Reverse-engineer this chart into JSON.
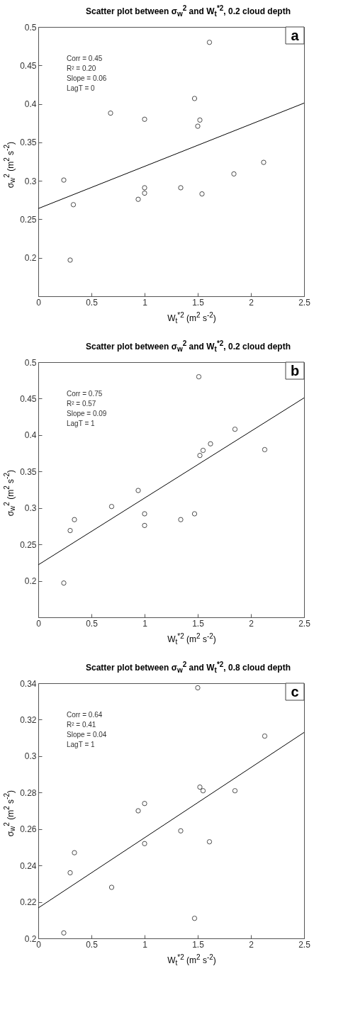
{
  "chart_data": [
    {
      "type": "scatter",
      "title": "Scatter plot between σ$_{w}$$^{2}$ and W$_{t}$$^{*2}$, 0.2 cloud depth",
      "xlabel": "W$_{t}$$^{*2}$ (m$^{2}$ s$^{-2}$)",
      "ylabel": "σ$_{w}$$^{2}$ (m$^{2}$ s$^{-2}$)",
      "xlim": [
        0,
        2.5
      ],
      "ylim": [
        0.15,
        0.5
      ],
      "xticks": [
        0,
        0.5,
        1,
        1.5,
        2,
        2.5
      ],
      "yticks": [
        0.2,
        0.25,
        0.3,
        0.35,
        0.4,
        0.45,
        0.5
      ],
      "series": [
        {
          "marker": "circle",
          "color": "#000000",
          "x": [
            0.24,
            0.3,
            0.33,
            0.68,
            0.94,
            1.0,
            1.0,
            1.0,
            1.34,
            1.47,
            1.5,
            1.52,
            1.54,
            1.61,
            1.84,
            2.12
          ],
          "values": [
            0.301,
            0.197,
            0.269,
            0.388,
            0.276,
            0.291,
            0.284,
            0.38,
            0.291,
            0.407,
            0.371,
            0.379,
            0.283,
            0.48,
            0.309,
            0.324
          ]
        },
        {
          "type": "line",
          "color": "#000000",
          "x": [
            0,
            2.5
          ],
          "values": [
            0.264,
            0.401
          ]
        }
      ],
      "annotations": [
        "a",
        "Corr = 0.45",
        "R² = 0.20",
        "Slope = 0.06",
        "LagT = 0"
      ]
    },
    {
      "type": "scatter",
      "title": "Scatter plot between σ$_{w}$$^{2}$ and W$_{t}$$^{*2}$, 0.2 cloud depth",
      "xlabel": "W$_{t}$$^{*2}$ (m$^{2}$ s$^{-2}$)",
      "ylabel": "σ$_{w}$$^{2}$ (m$^{2}$ s$^{-2}$)",
      "xlim": [
        0,
        2.5
      ],
      "ylim": [
        0.15,
        0.5
      ],
      "xticks": [
        0,
        0.5,
        1,
        1.5,
        2,
        2.5
      ],
      "yticks": [
        0.2,
        0.25,
        0.3,
        0.35,
        0.4,
        0.45,
        0.5
      ],
      "series": [
        {
          "marker": "circle",
          "color": "#000000",
          "x": [
            0.24,
            0.3,
            0.34,
            0.69,
            0.94,
            1.0,
            1.0,
            1.34,
            1.47,
            1.51,
            1.52,
            1.55,
            1.62,
            1.85,
            2.13
          ],
          "values": [
            0.197,
            0.269,
            0.284,
            0.302,
            0.324,
            0.292,
            0.276,
            0.284,
            0.292,
            0.48,
            0.372,
            0.379,
            0.388,
            0.408,
            0.38
          ]
        },
        {
          "type": "line",
          "color": "#000000",
          "x": [
            0,
            2.5
          ],
          "values": [
            0.222,
            0.451
          ]
        }
      ],
      "annotations": [
        "b",
        "Corr = 0.75",
        "R² = 0.57",
        "Slope = 0.09",
        "LagT = 1"
      ]
    },
    {
      "type": "scatter",
      "title": "Scatter plot between σ$_{w}$$^{2}$ and W$_{t}$$^{*2}$, 0.8 cloud depth",
      "xlabel": "W$_{t}$$^{*2}$ (m$^{2}$ s$^{-2}$)",
      "ylabel": "σ$_{w}$$^{2}$ (m$^{2}$ s$^{-2}$)",
      "xlim": [
        0,
        2.5
      ],
      "ylim": [
        0.2,
        0.34
      ],
      "xticks": [
        0,
        0.5,
        1,
        1.5,
        2,
        2.5
      ],
      "yticks": [
        0.2,
        0.22,
        0.24,
        0.26,
        0.28,
        0.3,
        0.32,
        0.34
      ],
      "series": [
        {
          "marker": "circle",
          "color": "#000000",
          "x": [
            0.24,
            0.3,
            0.34,
            0.69,
            0.94,
            1.0,
            1.0,
            1.34,
            1.47,
            1.5,
            1.52,
            1.55,
            1.61,
            1.85,
            2.13
          ],
          "values": [
            0.203,
            0.236,
            0.247,
            0.228,
            0.27,
            0.274,
            0.252,
            0.259,
            0.211,
            0.3375,
            0.283,
            0.281,
            0.253,
            0.281,
            0.311
          ]
        },
        {
          "type": "line",
          "color": "#000000",
          "x": [
            0,
            2.5
          ],
          "values": [
            0.2167,
            0.313
          ]
        }
      ],
      "annotations": [
        "c",
        "Corr = 0.64",
        "R² = 0.41",
        "Slope = 0.04",
        "LagT = 1"
      ]
    }
  ]
}
